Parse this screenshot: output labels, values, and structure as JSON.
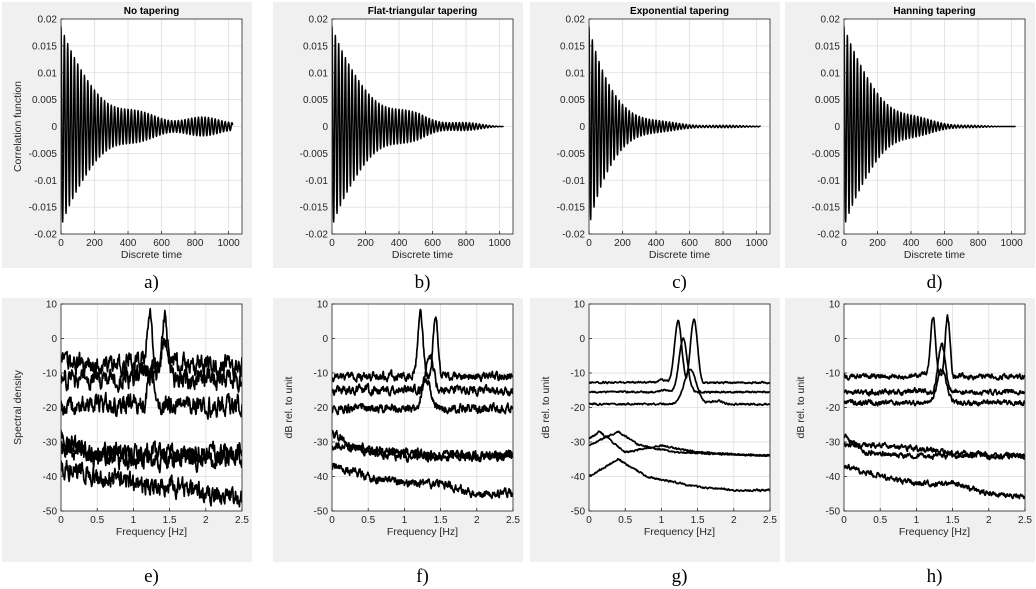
{
  "chart_data": [
    {
      "type": "line",
      "label": "a)",
      "title": "No tapering",
      "xlabel": "Discrete time",
      "ylabel": "Correlation function",
      "xlim": [
        0,
        1080
      ],
      "ylim": [
        -0.02,
        0.02
      ],
      "xticks": [
        "0",
        "200",
        "400",
        "600",
        "800",
        "1000"
      ],
      "yticks": [
        "0.02",
        "0.015",
        "0.01",
        "0.005",
        "0",
        "-0.005",
        "-0.01",
        "-0.015",
        "-0.02"
      ],
      "grid": true,
      "series": [
        {
          "kind": "correlation",
          "x_end": 1024,
          "period": 20,
          "amp0": 0.0175,
          "decay": 180,
          "floor": 0.0016,
          "taper": "none"
        }
      ]
    },
    {
      "type": "line",
      "label": "b)",
      "title": "Flat-triangular tapering",
      "xlabel": "Discrete time",
      "ylabel": "",
      "xlim": [
        0,
        1080
      ],
      "ylim": [
        -0.02,
        0.02
      ],
      "xticks": [
        "0",
        "200",
        "400",
        "600",
        "800",
        "1000"
      ],
      "yticks": [
        "0.02",
        "0.015",
        "0.01",
        "0.005",
        "0",
        "-0.005",
        "-0.01",
        "-0.015",
        "-0.02"
      ],
      "grid": true,
      "series": [
        {
          "kind": "correlation",
          "x_end": 1024,
          "period": 20,
          "amp0": 0.0175,
          "decay": 180,
          "floor": 0.0016,
          "taper": "flat-triangular"
        }
      ]
    },
    {
      "type": "line",
      "label": "c)",
      "title": "Exponential tapering",
      "xlabel": "Discrete time",
      "ylabel": "",
      "xlim": [
        0,
        1080
      ],
      "ylim": [
        -0.02,
        0.02
      ],
      "xticks": [
        "0",
        "200",
        "400",
        "600",
        "800",
        "1000"
      ],
      "yticks": [
        "0.02",
        "0.015",
        "0.01",
        "0.005",
        "0",
        "-0.005",
        "-0.01",
        "-0.015",
        "-0.02"
      ],
      "grid": true,
      "series": [
        {
          "kind": "correlation",
          "x_end": 1024,
          "period": 20,
          "amp0": 0.0175,
          "decay": 180,
          "floor": 0.0016,
          "taper": "exponential"
        }
      ]
    },
    {
      "type": "line",
      "label": "d)",
      "title": "Hanning tapering",
      "xlabel": "Discrete time",
      "ylabel": "",
      "xlim": [
        0,
        1080
      ],
      "ylim": [
        -0.02,
        0.02
      ],
      "xticks": [
        "0",
        "200",
        "400",
        "600",
        "800",
        "1000"
      ],
      "yticks": [
        "0.02",
        "0.015",
        "0.01",
        "0.005",
        "0",
        "-0.005",
        "-0.01",
        "-0.015",
        "-0.02"
      ],
      "grid": true,
      "series": [
        {
          "kind": "correlation",
          "x_end": 1024,
          "period": 20,
          "amp0": 0.0175,
          "decay": 180,
          "floor": 0.0016,
          "taper": "hanning"
        }
      ]
    },
    {
      "type": "line",
      "label": "e)",
      "title": "",
      "xlabel": "Frequency [Hz]",
      "ylabel": "Spectral density",
      "xlim": [
        0,
        2.5
      ],
      "ylim": [
        -50,
        10
      ],
      "xticks": [
        "0",
        "0.5",
        "1",
        "1.5",
        "2",
        "2.5"
      ],
      "yticks": [
        "10",
        "0",
        "-10",
        "-20",
        "-30",
        "-40",
        "-50"
      ],
      "grid": true,
      "series": [
        {
          "kind": "spectrum",
          "noise": 4.5,
          "peaks": [
            [
              1.22,
              7.0,
              0.05
            ],
            [
              1.43,
              7.0,
              0.05
            ]
          ],
          "pts": [
            [
              0,
              -13
            ],
            [
              0.5,
              -13
            ],
            [
              0.9,
              -10
            ],
            [
              1.1,
              -6
            ],
            [
              1.6,
              -12
            ],
            [
              2.0,
              -14
            ],
            [
              2.5,
              -16
            ]
          ]
        },
        {
          "kind": "spectrum",
          "noise": 4.5,
          "peaks": [
            [
              1.43,
              0,
              0.06
            ]
          ],
          "pts": [
            [
              0,
              -14
            ],
            [
              0.8,
              -12
            ],
            [
              1.2,
              -10
            ],
            [
              1.6,
              -13
            ],
            [
              2.0,
              -15
            ],
            [
              2.5,
              -19
            ]
          ]
        },
        {
          "kind": "spectrum",
          "noise": 4.5,
          "peaks": [
            [
              1.25,
              -8,
              0.06
            ]
          ],
          "pts": [
            [
              0,
              -21
            ],
            [
              0.6,
              -21
            ],
            [
              1.0,
              -19
            ],
            [
              1.6,
              -20
            ],
            [
              2.0,
              -23
            ],
            [
              2.5,
              -27
            ]
          ]
        },
        {
          "kind": "spectrum",
          "noise": 4.5,
          "peaks": [],
          "pts": [
            [
              0,
              -32
            ],
            [
              0.5,
              -33
            ],
            [
              1.0,
              -33
            ],
            [
              1.5,
              -33
            ],
            [
              2.0,
              -33
            ],
            [
              2.5,
              -33
            ]
          ]
        },
        {
          "kind": "spectrum",
          "noise": 4.5,
          "peaks": [],
          "pts": [
            [
              0,
              -28
            ],
            [
              0.3,
              -33
            ],
            [
              0.8,
              -35
            ],
            [
              1.5,
              -35
            ],
            [
              2.5,
              -35
            ]
          ]
        },
        {
          "kind": "spectrum",
          "noise": 4.5,
          "peaks": [],
          "pts": [
            [
              0,
              -37
            ],
            [
              0.5,
              -40
            ],
            [
              1.0,
              -42
            ],
            [
              1.5,
              -43
            ],
            [
              2.0,
              -45
            ],
            [
              2.5,
              -46
            ]
          ]
        }
      ]
    },
    {
      "type": "line",
      "label": "f)",
      "title": "",
      "xlabel": "Frequency [Hz]",
      "ylabel": "dB rel. to unit",
      "xlim": [
        0,
        2.5
      ],
      "ylim": [
        -50,
        10
      ],
      "xticks": [
        "0",
        "0.5",
        "1",
        "1.5",
        "2",
        "2.5"
      ],
      "yticks": [
        "10",
        "0",
        "-10",
        "-20",
        "-30",
        "-40",
        "-50"
      ],
      "grid": true,
      "series": [
        {
          "kind": "spectrum",
          "noise": 2.0,
          "peaks": [
            [
              1.22,
              7.0,
              0.05
            ],
            [
              1.43,
              7.0,
              0.05
            ]
          ],
          "pts": [
            [
              0,
              -17
            ],
            [
              0.5,
              -17
            ],
            [
              0.9,
              -15
            ],
            [
              1.1,
              -10
            ],
            [
              1.6,
              -14
            ],
            [
              2.0,
              -17
            ],
            [
              2.5,
              -20
            ]
          ]
        },
        {
          "kind": "spectrum",
          "noise": 2.0,
          "peaks": [
            [
              1.35,
              -4,
              0.07
            ]
          ],
          "pts": [
            [
              0,
              -18
            ],
            [
              0.6,
              -17
            ],
            [
              1.0,
              -15
            ],
            [
              1.6,
              -15
            ],
            [
              2.0,
              -19
            ],
            [
              2.5,
              -22
            ]
          ]
        },
        {
          "kind": "spectrum",
          "noise": 2.0,
          "peaks": [
            [
              1.3,
              -12,
              0.08
            ]
          ],
          "pts": [
            [
              0,
              -24
            ],
            [
              0.5,
              -24
            ],
            [
              1.0,
              -21
            ],
            [
              1.5,
              -20
            ],
            [
              2.0,
              -23
            ],
            [
              2.5,
              -25
            ]
          ]
        },
        {
          "kind": "spectrum",
          "noise": 2.0,
          "peaks": [],
          "pts": [
            [
              0,
              -31
            ],
            [
              0.5,
              -32
            ],
            [
              1.0,
              -33
            ],
            [
              1.5,
              -34
            ],
            [
              2.0,
              -34
            ],
            [
              2.5,
              -34
            ]
          ]
        },
        {
          "kind": "spectrum",
          "noise": 2.0,
          "peaks": [],
          "pts": [
            [
              0,
              -27
            ],
            [
              0.3,
              -32
            ],
            [
              0.8,
              -34
            ],
            [
              1.5,
              -34
            ],
            [
              2.5,
              -34
            ]
          ]
        },
        {
          "kind": "spectrum",
          "noise": 2.0,
          "peaks": [],
          "pts": [
            [
              0,
              -37
            ],
            [
              0.5,
              -40
            ],
            [
              1.0,
              -42
            ],
            [
              1.5,
              -42
            ],
            [
              2.0,
              -45
            ],
            [
              2.5,
              -45
            ]
          ]
        }
      ]
    },
    {
      "type": "line",
      "label": "g)",
      "title": "",
      "xlabel": "Frequency [Hz]",
      "ylabel": "dB rel. to unit",
      "xlim": [
        0,
        2.5
      ],
      "ylim": [
        -50,
        10
      ],
      "xticks": [
        "0",
        "0.5",
        "1",
        "1.5",
        "2",
        "2.5"
      ],
      "yticks": [
        "10",
        "0",
        "-10",
        "-20",
        "-30",
        "-40",
        "-50"
      ],
      "grid": true,
      "series": [
        {
          "kind": "spectrum",
          "noise": 0.4,
          "peaks": [
            [
              1.23,
              5,
              0.07
            ],
            [
              1.45,
              5.5,
              0.07
            ]
          ],
          "pts": [
            [
              0,
              -17
            ],
            [
              0.5,
              -16
            ],
            [
              1.0,
              -12
            ],
            [
              1.6,
              -14
            ],
            [
              2.0,
              -17
            ],
            [
              2.5,
              -20
            ]
          ]
        },
        {
          "kind": "spectrum",
          "noise": 0.4,
          "peaks": [
            [
              1.3,
              0,
              0.08
            ]
          ],
          "pts": [
            [
              0,
              -18
            ],
            [
              0.5,
              -18
            ],
            [
              1.0,
              -15
            ],
            [
              1.6,
              -16
            ],
            [
              2.0,
              -20
            ],
            [
              2.5,
              -23
            ]
          ]
        },
        {
          "kind": "spectrum",
          "noise": 0.4,
          "peaks": [
            [
              1.4,
              -9,
              0.12
            ]
          ],
          "pts": [
            [
              0,
              -22
            ],
            [
              0.15,
              -19
            ],
            [
              0.5,
              -22
            ],
            [
              1.0,
              -20
            ],
            [
              1.8,
              -18
            ],
            [
              2.5,
              -24
            ]
          ]
        },
        {
          "kind": "spectrum",
          "noise": 0.4,
          "peaks": [],
          "pts": [
            [
              0,
              -29
            ],
            [
              0.15,
              -27
            ],
            [
              0.5,
              -33
            ],
            [
              1.0,
              -31
            ],
            [
              1.5,
              -33
            ],
            [
              2.5,
              -34
            ]
          ]
        },
        {
          "kind": "spectrum",
          "noise": 0.4,
          "peaks": [],
          "pts": [
            [
              0,
              -31
            ],
            [
              0.4,
              -27
            ],
            [
              0.7,
              -31
            ],
            [
              1.2,
              -33
            ],
            [
              2.5,
              -34
            ]
          ]
        },
        {
          "kind": "spectrum",
          "noise": 0.4,
          "peaks": [],
          "pts": [
            [
              0,
              -40
            ],
            [
              0.4,
              -35
            ],
            [
              0.8,
              -40
            ],
            [
              1.5,
              -43
            ],
            [
              2.0,
              -44
            ],
            [
              2.5,
              -44
            ]
          ]
        }
      ]
    },
    {
      "type": "line",
      "label": "h)",
      "title": "",
      "xlabel": "Frequency [Hz]",
      "ylabel": "dB rel. to unit",
      "xlim": [
        0,
        2.5
      ],
      "ylim": [
        -50,
        10
      ],
      "xticks": [
        "0",
        "0.5",
        "1",
        "1.5",
        "2",
        "2.5"
      ],
      "yticks": [
        "10",
        "0",
        "-10",
        "-20",
        "-30",
        "-40",
        "-50"
      ],
      "grid": true,
      "series": [
        {
          "kind": "spectrum",
          "noise": 1.2,
          "peaks": [
            [
              1.23,
              6.5,
              0.05
            ],
            [
              1.43,
              6.5,
              0.05
            ]
          ],
          "pts": [
            [
              0,
              -17
            ],
            [
              0.5,
              -17
            ],
            [
              0.9,
              -14
            ],
            [
              1.1,
              -10
            ],
            [
              1.6,
              -14
            ],
            [
              2.0,
              -18
            ],
            [
              2.5,
              -21
            ]
          ]
        },
        {
          "kind": "spectrum",
          "noise": 1.2,
          "peaks": [
            [
              1.35,
              -2,
              0.07
            ]
          ],
          "pts": [
            [
              0,
              -18
            ],
            [
              0.5,
              -17
            ],
            [
              1.0,
              -15
            ],
            [
              1.6,
              -16
            ],
            [
              2.0,
              -20
            ],
            [
              2.5,
              -22
            ]
          ]
        },
        {
          "kind": "spectrum",
          "noise": 1.2,
          "peaks": [
            [
              1.35,
              -9,
              0.09
            ]
          ],
          "pts": [
            [
              0,
              -27
            ],
            [
              0.5,
              -25
            ],
            [
              1.0,
              -20
            ],
            [
              1.5,
              -18
            ],
            [
              2.0,
              -22
            ],
            [
              2.5,
              -25
            ]
          ]
        },
        {
          "kind": "spectrum",
          "noise": 1.2,
          "peaks": [],
          "pts": [
            [
              0,
              -31
            ],
            [
              0.5,
              -31
            ],
            [
              1.0,
              -32
            ],
            [
              1.5,
              -33
            ],
            [
              2.0,
              -34
            ],
            [
              2.5,
              -34
            ]
          ]
        },
        {
          "kind": "spectrum",
          "noise": 1.2,
          "peaks": [],
          "pts": [
            [
              0,
              -28
            ],
            [
              0.3,
              -33
            ],
            [
              0.8,
              -34
            ],
            [
              1.5,
              -34
            ],
            [
              2.5,
              -34
            ]
          ]
        },
        {
          "kind": "spectrum",
          "noise": 1.2,
          "peaks": [],
          "pts": [
            [
              0,
              -37
            ],
            [
              0.5,
              -40
            ],
            [
              1.0,
              -42
            ],
            [
              1.5,
              -42
            ],
            [
              2.0,
              -45
            ],
            [
              2.5,
              -46
            ]
          ]
        }
      ]
    }
  ]
}
